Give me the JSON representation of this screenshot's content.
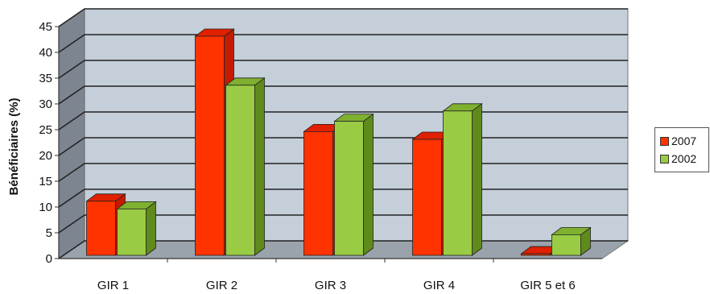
{
  "chart_data": {
    "type": "bar",
    "categories": [
      "GIR 1",
      "GIR 2",
      "GIR 3",
      "GIR 4",
      "GIR 5 et 6"
    ],
    "series": [
      {
        "name": "2007",
        "values": [
          10.5,
          42.5,
          24,
          22.5,
          0.3
        ],
        "color": "#ff3300",
        "side_color": "#c41a00",
        "top_color": "#e02000"
      },
      {
        "name": "2002",
        "values": [
          9,
          33,
          26,
          28,
          4
        ],
        "color": "#99cc44",
        "side_color": "#5f8a1c",
        "top_color": "#7fb030"
      }
    ],
    "title": "",
    "xlabel": "",
    "ylabel": "Bénéficiaires (%)",
    "ylim": [
      0,
      45
    ],
    "yticks": [
      "0",
      "5",
      "10",
      "15",
      "20",
      "25",
      "30",
      "35",
      "40",
      "45"
    ],
    "grid": true,
    "legend_position": "right",
    "colors": {
      "wall": "#c5cfd9",
      "side_wall": "#7d8690",
      "floor": "#9aa3ac"
    }
  }
}
